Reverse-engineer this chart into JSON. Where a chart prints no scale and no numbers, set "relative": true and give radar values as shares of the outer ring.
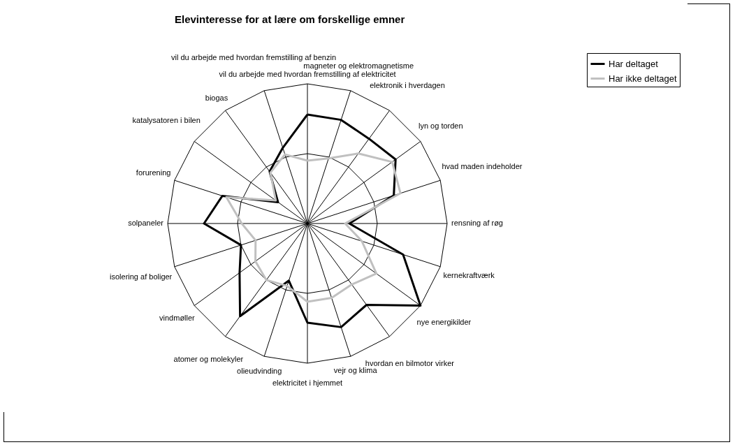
{
  "chart_data": {
    "type": "radar",
    "title": "Elevinteresse for at lære om forskellige emner",
    "relative": true,
    "grid": true,
    "legend": "right",
    "categories": [
      "vil du arbejde med hvordan fremstilling af elektricitet",
      "magneter og elektromagnetisme",
      "elektronik i hverdagen",
      "lyn og torden",
      "hvad maden indeholder",
      "rensning af røg",
      "kernekraftværk",
      "nye energikilder",
      "hvordan en bilmotor virker",
      "vejr og klima",
      "elektricitet i hjemmet",
      "olieudvinding",
      "atomer og molekyler",
      "vindmøller",
      "isolering af boliger",
      "solpaneler",
      "forurening",
      "katalysatoren i bilen",
      "biogas",
      "vil du arbejde med hvordan fremstilling af benzin"
    ],
    "series": [
      {
        "name": "Har deltaget",
        "color": "#000000",
        "values": [
          0.78,
          0.78,
          0.75,
          0.78,
          0.65,
          0.3,
          0.72,
          1.0,
          0.72,
          0.78,
          0.71,
          0.43,
          0.82,
          0.6,
          0.5,
          0.74,
          0.64,
          0.26,
          0.46,
          0.57
        ]
      },
      {
        "name": "Har ikke deltaget",
        "color": "#c0c0c0",
        "values": [
          0.45,
          0.49,
          0.62,
          0.75,
          0.7,
          0.27,
          0.41,
          0.61,
          0.54,
          0.56,
          0.56,
          0.47,
          0.5,
          0.46,
          0.39,
          0.47,
          0.61,
          0.28,
          0.45,
          0.52
        ]
      }
    ]
  }
}
